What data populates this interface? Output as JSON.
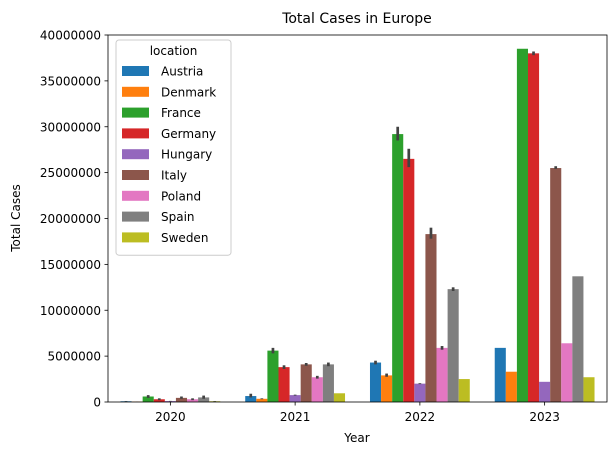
{
  "chart_data": {
    "type": "bar",
    "title": "Total Cases in Europe",
    "xlabel": "Year",
    "ylabel": "Total Cases",
    "categories": [
      "2020",
      "2021",
      "2022",
      "2023"
    ],
    "ylim": [
      0,
      40000000
    ],
    "yticks": [
      0,
      5000000,
      10000000,
      15000000,
      20000000,
      25000000,
      30000000,
      35000000,
      40000000
    ],
    "ytick_labels": [
      "0",
      "5000000",
      "10000000",
      "15000000",
      "20000000",
      "25000000",
      "30000000",
      "35000000",
      "40000000"
    ],
    "grid": false,
    "legend": {
      "title": "location",
      "placement": "top-left"
    },
    "series": [
      {
        "name": "Austria",
        "color": "#1f77b4",
        "values": [
          80000,
          650000,
          4300000,
          5900000
        ],
        "error": [
          [
            60000,
            100000
          ],
          [
            500000,
            900000
          ],
          [
            4100000,
            4500000
          ],
          [
            5900000,
            5900000
          ]
        ]
      },
      {
        "name": "Denmark",
        "color": "#ff7f0e",
        "values": [
          40000,
          350000,
          2900000,
          3300000
        ],
        "error": [
          [
            30000,
            50000
          ],
          [
            300000,
            400000
          ],
          [
            2750000,
            3100000
          ],
          [
            3300000,
            3300000
          ]
        ]
      },
      {
        "name": "France",
        "color": "#2ca02c",
        "values": [
          600000,
          5600000,
          29200000,
          38500000
        ],
        "error": [
          [
            450000,
            750000
          ],
          [
            5300000,
            5900000
          ],
          [
            28500000,
            30000000
          ],
          [
            38500000,
            38500000
          ]
        ]
      },
      {
        "name": "Germany",
        "color": "#d62728",
        "values": [
          300000,
          3800000,
          26500000,
          38000000
        ],
        "error": [
          [
            200000,
            400000
          ],
          [
            3600000,
            4000000
          ],
          [
            25600000,
            27600000
          ],
          [
            37800000,
            38200000
          ]
        ]
      },
      {
        "name": "Hungary",
        "color": "#9467bd",
        "values": [
          100000,
          750000,
          2000000,
          2200000
        ],
        "error": [
          [
            80000,
            120000
          ],
          [
            700000,
            800000
          ],
          [
            1950000,
            2050000
          ],
          [
            2200000,
            2200000
          ]
        ]
      },
      {
        "name": "Italy",
        "color": "#8c564b",
        "values": [
          450000,
          4100000,
          18300000,
          25500000
        ],
        "error": [
          [
            350000,
            600000
          ],
          [
            3950000,
            4250000
          ],
          [
            17800000,
            19000000
          ],
          [
            25400000,
            25700000
          ]
        ]
      },
      {
        "name": "Poland",
        "color": "#e377c2",
        "values": [
          300000,
          2700000,
          5900000,
          6400000
        ],
        "error": [
          [
            200000,
            400000
          ],
          [
            2550000,
            2850000
          ],
          [
            5700000,
            6100000
          ],
          [
            6400000,
            6400000
          ]
        ]
      },
      {
        "name": "Spain",
        "color": "#7f7f7f",
        "values": [
          500000,
          4100000,
          12300000,
          13700000
        ],
        "error": [
          [
            350000,
            700000
          ],
          [
            3900000,
            4300000
          ],
          [
            12100000,
            12500000
          ],
          [
            13700000,
            13700000
          ]
        ]
      },
      {
        "name": "Sweden",
        "color": "#bcbd22",
        "values": [
          80000,
          950000,
          2500000,
          2700000
        ],
        "error": [
          [
            60000,
            100000
          ],
          [
            950000,
            950000
          ],
          [
            2500000,
            2500000
          ],
          [
            2700000,
            2700000
          ]
        ]
      }
    ]
  }
}
